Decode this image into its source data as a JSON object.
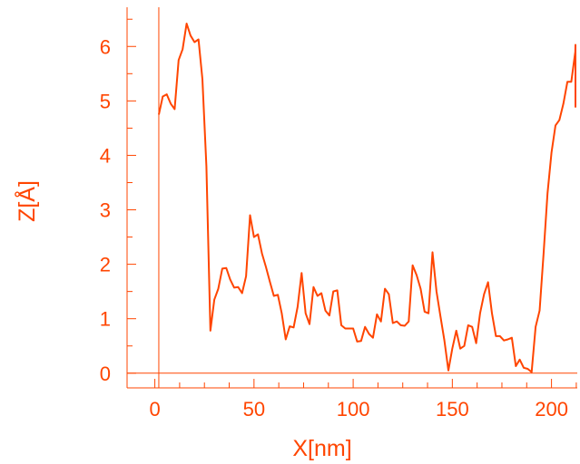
{
  "colors": {
    "accent": "#ff4500",
    "background": "#ffffff"
  },
  "chart_data": {
    "type": "line",
    "title": "",
    "xlabel": "X[nm]",
    "ylabel": "Z[Å]",
    "xlim": [
      -14,
      213
    ],
    "ylim": [
      -0.27,
      6.72
    ],
    "x_ticks": [
      0,
      50,
      100,
      150,
      200
    ],
    "x_tick_labels": [
      "0",
      "50",
      "100",
      "150",
      "200"
    ],
    "y_ticks": [
      0,
      1,
      2,
      3,
      4,
      5,
      6
    ],
    "y_tick_labels": [
      "0",
      "1",
      "2",
      "3",
      "4",
      "5",
      "6"
    ],
    "x_minor_step": 12.5,
    "y_minor_step": 0.5,
    "reference_lines": {
      "x": 2,
      "y": 0
    },
    "grid": false,
    "series": [
      {
        "points": [
          [
            2,
            4.75
          ],
          [
            4,
            5.08
          ],
          [
            6,
            5.12
          ],
          [
            8,
            4.95
          ],
          [
            10,
            4.85
          ],
          [
            12,
            5.75
          ],
          [
            14,
            5.95
          ],
          [
            16,
            6.42
          ],
          [
            18,
            6.2
          ],
          [
            20,
            6.08
          ],
          [
            22,
            6.13
          ],
          [
            24,
            5.4
          ],
          [
            26,
            3.8
          ],
          [
            28,
            0.78
          ],
          [
            30,
            1.35
          ],
          [
            32,
            1.55
          ],
          [
            34,
            1.92
          ],
          [
            36,
            1.93
          ],
          [
            38,
            1.72
          ],
          [
            40,
            1.57
          ],
          [
            42,
            1.58
          ],
          [
            44,
            1.47
          ],
          [
            46,
            1.78
          ],
          [
            48,
            2.9
          ],
          [
            50,
            2.5
          ],
          [
            52,
            2.55
          ],
          [
            54,
            2.2
          ],
          [
            56,
            1.95
          ],
          [
            58,
            1.68
          ],
          [
            60,
            1.42
          ],
          [
            62,
            1.44
          ],
          [
            64,
            1.1
          ],
          [
            66,
            0.62
          ],
          [
            68,
            0.86
          ],
          [
            70,
            0.84
          ],
          [
            72,
            1.22
          ],
          [
            74,
            1.84
          ],
          [
            76,
            1.1
          ],
          [
            78,
            0.9
          ],
          [
            80,
            1.58
          ],
          [
            82,
            1.42
          ],
          [
            84,
            1.47
          ],
          [
            86,
            1.15
          ],
          [
            88,
            1.06
          ],
          [
            90,
            1.5
          ],
          [
            92,
            1.52
          ],
          [
            94,
            0.88
          ],
          [
            96,
            0.82
          ],
          [
            98,
            0.82
          ],
          [
            100,
            0.82
          ],
          [
            102,
            0.58
          ],
          [
            104,
            0.59
          ],
          [
            106,
            0.85
          ],
          [
            108,
            0.72
          ],
          [
            110,
            0.65
          ],
          [
            112,
            1.08
          ],
          [
            114,
            0.95
          ],
          [
            116,
            1.55
          ],
          [
            118,
            1.45
          ],
          [
            120,
            0.92
          ],
          [
            122,
            0.95
          ],
          [
            124,
            0.88
          ],
          [
            126,
            0.87
          ],
          [
            128,
            0.95
          ],
          [
            130,
            1.98
          ],
          [
            132,
            1.8
          ],
          [
            134,
            1.55
          ],
          [
            136,
            1.13
          ],
          [
            138,
            1.1
          ],
          [
            140,
            2.22
          ],
          [
            142,
            1.5
          ],
          [
            144,
            1.05
          ],
          [
            146,
            0.6
          ],
          [
            148,
            0.05
          ],
          [
            150,
            0.45
          ],
          [
            152,
            0.78
          ],
          [
            154,
            0.45
          ],
          [
            156,
            0.5
          ],
          [
            158,
            0.88
          ],
          [
            160,
            0.85
          ],
          [
            162,
            0.55
          ],
          [
            164,
            1.1
          ],
          [
            166,
            1.45
          ],
          [
            168,
            1.67
          ],
          [
            170,
            1.1
          ],
          [
            172,
            0.68
          ],
          [
            174,
            0.68
          ],
          [
            176,
            0.6
          ],
          [
            178,
            0.62
          ],
          [
            180,
            0.65
          ],
          [
            182,
            0.13
          ],
          [
            184,
            0.25
          ],
          [
            186,
            0.1
          ],
          [
            188,
            0.08
          ],
          [
            190,
            0.02
          ],
          [
            192,
            0.85
          ],
          [
            194,
            1.15
          ],
          [
            196,
            2.2
          ],
          [
            198,
            3.3
          ],
          [
            200,
            4.05
          ],
          [
            202,
            4.55
          ],
          [
            204,
            4.65
          ],
          [
            206,
            4.95
          ],
          [
            208,
            5.35
          ],
          [
            210,
            5.35
          ],
          [
            212,
            5.9
          ],
          [
            214,
            6.03
          ],
          [
            216,
            5.55
          ],
          [
            218,
            5.2
          ],
          [
            220,
            4.88
          ]
        ]
      }
    ]
  }
}
